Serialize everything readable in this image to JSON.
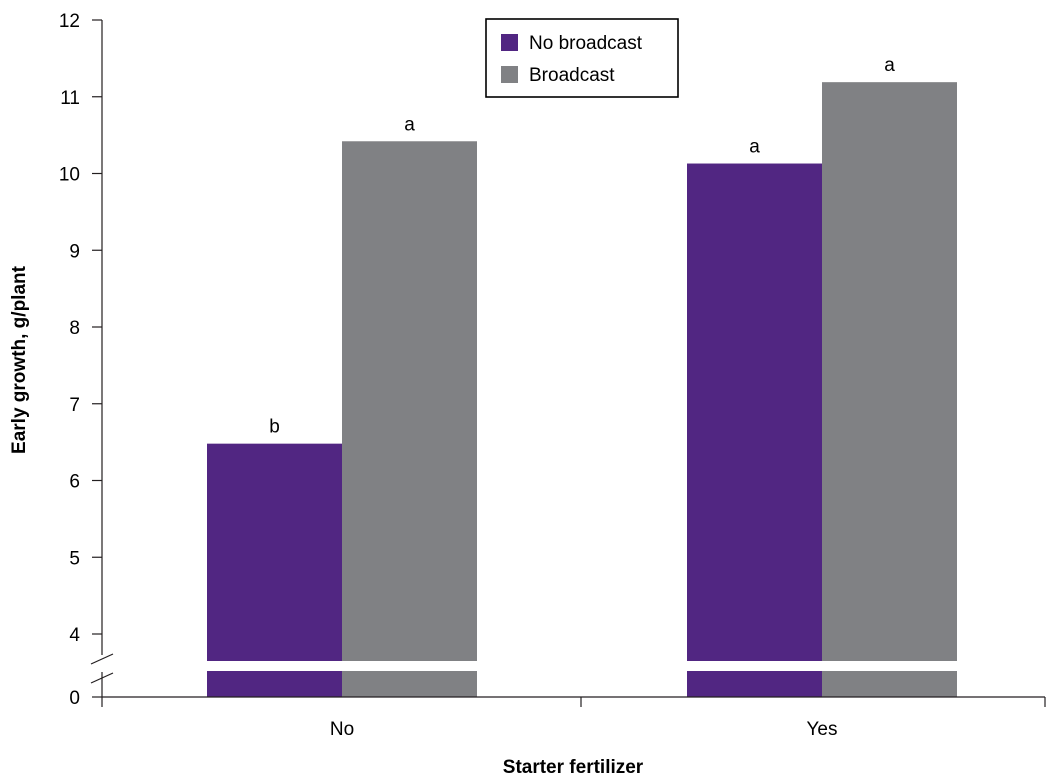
{
  "chart_data": {
    "type": "bar",
    "title": "",
    "xlabel": "Starter fertilizer",
    "ylabel": "Early growth, g/plant",
    "categories": [
      "No",
      "Yes"
    ],
    "series": [
      {
        "name": "No broadcast",
        "color": "#512682",
        "values": [
          6.48,
          10.13
        ],
        "labels": [
          "b",
          "a"
        ]
      },
      {
        "name": "Broadcast",
        "color": "#808184",
        "values": [
          10.42,
          11.19
        ],
        "labels": [
          "a",
          "a"
        ]
      }
    ],
    "yticks": [
      "0",
      "4",
      "5",
      "6",
      "7",
      "8",
      "9",
      "10",
      "11",
      "12"
    ],
    "ylim": [
      0,
      12
    ],
    "axis_break": [
      0,
      3.6
    ],
    "legend_position": "top-center",
    "grid": false
  }
}
